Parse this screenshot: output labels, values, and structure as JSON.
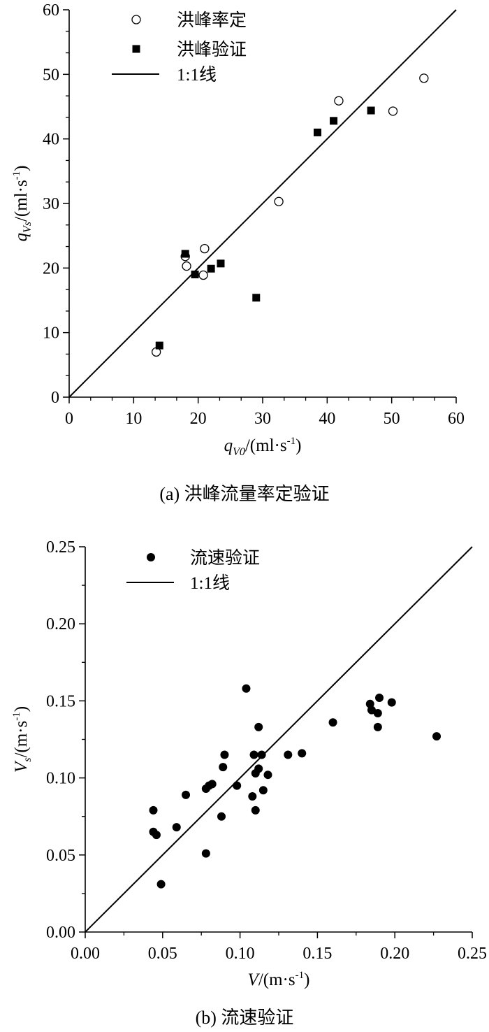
{
  "chart_data": [
    {
      "type": "scatter",
      "caption": "(a) 洪峰流量率定验证",
      "xlabel": {
        "symbol": "q",
        "sub": "V0",
        "unit": "/(ml·s",
        "sup": "-1",
        "close": ")"
      },
      "ylabel": {
        "symbol": "q",
        "sub": "Vs",
        "unit": "/(ml·s",
        "sup": "-1",
        "close": ")"
      },
      "xlim": [
        0,
        60
      ],
      "ylim": [
        0,
        60
      ],
      "xticks": [
        "0",
        "10",
        "20",
        "30",
        "40",
        "50",
        "60"
      ],
      "yticks": [
        "0",
        "10",
        "20",
        "30",
        "40",
        "50",
        "60"
      ],
      "legend_position": "top-left",
      "series": [
        {
          "name": "洪峰率定",
          "marker": "open-circle",
          "points": [
            [
              13.5,
              7.0
            ],
            [
              18.0,
              21.8
            ],
            [
              18.2,
              20.3
            ],
            [
              20.8,
              18.9
            ],
            [
              21.0,
              23.0
            ],
            [
              32.5,
              30.3
            ],
            [
              41.8,
              45.9
            ],
            [
              50.2,
              44.3
            ],
            [
              55.0,
              49.4
            ]
          ]
        },
        {
          "name": "洪峰验证",
          "marker": "filled-square",
          "points": [
            [
              14.0,
              8.0
            ],
            [
              18.0,
              22.2
            ],
            [
              19.5,
              19.0
            ],
            [
              22.0,
              19.9
            ],
            [
              23.5,
              20.7
            ],
            [
              29.0,
              15.4
            ],
            [
              38.5,
              41.0
            ],
            [
              41.0,
              42.8
            ],
            [
              46.8,
              44.4
            ]
          ]
        },
        {
          "name": "1:1线",
          "marker": "line",
          "points": [
            [
              0,
              0
            ],
            [
              60,
              60
            ]
          ]
        }
      ]
    },
    {
      "type": "scatter",
      "caption": "(b) 流速验证",
      "xlabel": {
        "symbol": "V",
        "sub": "",
        "unit": "/(m·s",
        "sup": "-1",
        "close": ")"
      },
      "ylabel": {
        "symbol": "V",
        "sub": "s",
        "unit": "/(m·s",
        "sup": "-1",
        "close": ")"
      },
      "xlim": [
        0,
        0.25
      ],
      "ylim": [
        0,
        0.25
      ],
      "xticks": [
        "0.00",
        "0.05",
        "0.10",
        "0.15",
        "0.20",
        "0.25"
      ],
      "yticks": [
        "0.00",
        "0.05",
        "0.10",
        "0.15",
        "0.20",
        "0.25"
      ],
      "legend_position": "top-left",
      "series": [
        {
          "name": "流速验证",
          "marker": "filled-circle",
          "points": [
            [
              0.044,
              0.079
            ],
            [
              0.044,
              0.065
            ],
            [
              0.046,
              0.063
            ],
            [
              0.049,
              0.031
            ],
            [
              0.059,
              0.068
            ],
            [
              0.065,
              0.089
            ],
            [
              0.078,
              0.051
            ],
            [
              0.078,
              0.093
            ],
            [
              0.08,
              0.095
            ],
            [
              0.082,
              0.096
            ],
            [
              0.088,
              0.075
            ],
            [
              0.089,
              0.107
            ],
            [
              0.09,
              0.115
            ],
            [
              0.098,
              0.095
            ],
            [
              0.104,
              0.158
            ],
            [
              0.108,
              0.088
            ],
            [
              0.109,
              0.115
            ],
            [
              0.11,
              0.103
            ],
            [
              0.11,
              0.079
            ],
            [
              0.112,
              0.133
            ],
            [
              0.112,
              0.106
            ],
            [
              0.114,
              0.115
            ],
            [
              0.115,
              0.092
            ],
            [
              0.118,
              0.102
            ],
            [
              0.131,
              0.115
            ],
            [
              0.14,
              0.116
            ],
            [
              0.16,
              0.136
            ],
            [
              0.184,
              0.148
            ],
            [
              0.185,
              0.144
            ],
            [
              0.189,
              0.133
            ],
            [
              0.189,
              0.142
            ],
            [
              0.19,
              0.152
            ],
            [
              0.198,
              0.149
            ],
            [
              0.227,
              0.127
            ]
          ]
        },
        {
          "name": "1:1线",
          "marker": "line",
          "points": [
            [
              0,
              0
            ],
            [
              0.25,
              0.25
            ]
          ]
        }
      ]
    }
  ]
}
